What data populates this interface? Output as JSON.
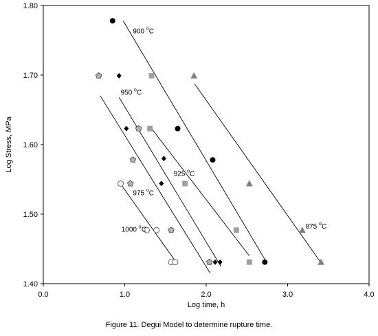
{
  "chart_data": {
    "type": "scatter",
    "caption": "Figure 11. Degui Model to determine rupture time.",
    "xlabel": "Log time, h",
    "ylabel": "Log Stress, MPa",
    "xlim": [
      0.0,
      4.0
    ],
    "ylim": [
      1.4,
      1.8
    ],
    "x_ticks": [
      "0.0",
      "1.0",
      "2.0",
      "3.0",
      "4.0"
    ],
    "y_ticks": [
      "1.40",
      "1.50",
      "1.60",
      "1.70",
      "1.80"
    ],
    "grid": false,
    "series": [
      {
        "marker": "circle-filled",
        "color": "#000000",
        "points": [
          [
            0.85,
            1.778
          ],
          [
            1.65,
            1.623
          ],
          [
            2.08,
            1.578
          ],
          [
            2.72,
            1.431
          ]
        ]
      },
      {
        "marker": "square",
        "color": "#a0a0a0",
        "points": [
          [
            1.33,
            1.699
          ],
          [
            1.31,
            1.623
          ],
          [
            1.74,
            1.544
          ],
          [
            2.37,
            1.477
          ],
          [
            2.53,
            1.431
          ]
        ]
      },
      {
        "marker": "triangle",
        "color": "#808080",
        "points": [
          [
            1.85,
            1.699
          ],
          [
            2.53,
            1.544
          ],
          [
            3.18,
            1.477
          ],
          [
            3.41,
            1.431
          ]
        ]
      },
      {
        "marker": "diamond",
        "color": "#000000",
        "points": [
          [
            0.93,
            1.699
          ],
          [
            1.02,
            1.623
          ],
          [
            1.48,
            1.58
          ],
          [
            1.45,
            1.544
          ],
          [
            2.11,
            1.431
          ],
          [
            2.17,
            1.431
          ]
        ]
      },
      {
        "marker": "pentagon",
        "color": "#b0b0b0",
        "points": [
          [
            0.68,
            1.699
          ],
          [
            1.17,
            1.623
          ],
          [
            1.1,
            1.578
          ],
          [
            1.07,
            1.544
          ],
          [
            1.57,
            1.477
          ],
          [
            2.04,
            1.431
          ]
        ]
      },
      {
        "marker": "circle-open",
        "color": "#ffffff",
        "points": [
          [
            0.95,
            1.544
          ],
          [
            1.27,
            1.477
          ],
          [
            1.39,
            1.477
          ],
          [
            1.57,
            1.431
          ],
          [
            1.62,
            1.431
          ]
        ]
      }
    ],
    "fit_lines": [
      {
        "label": "900",
        "from": [
          0.98,
          1.778
        ],
        "to": [
          2.74,
          1.431
        ]
      },
      {
        "label": "925",
        "from": [
          1.33,
          1.623
        ],
        "to": [
          2.53,
          1.44
        ]
      },
      {
        "label": "875",
        "from": [
          1.86,
          1.687
        ],
        "to": [
          3.41,
          1.43
        ]
      },
      {
        "label": "950",
        "from": [
          0.93,
          1.668
        ],
        "to": [
          2.18,
          1.425
        ]
      },
      {
        "label": "",
        "from": [
          0.7,
          1.67
        ],
        "to": [
          2.05,
          1.415
        ]
      },
      {
        "label": "1000",
        "from": [
          0.97,
          1.54
        ],
        "to": [
          1.63,
          1.431
        ]
      }
    ],
    "annotations": [
      {
        "text": "900 ",
        "unit": "o",
        "suffix": "C",
        "at": [
          1.1,
          1.76
        ]
      },
      {
        "text": "950 ",
        "unit": "o",
        "suffix": "C",
        "at": [
          0.95,
          1.672
        ]
      },
      {
        "text": "925 ",
        "unit": "o",
        "suffix": "C",
        "at": [
          1.6,
          1.555
        ]
      },
      {
        "text": "975 ",
        "unit": "o",
        "suffix": "C",
        "at": [
          1.1,
          1.527
        ]
      },
      {
        "text": "1000 ",
        "unit": "o",
        "suffix": "C",
        "at": [
          0.96,
          1.475
        ]
      },
      {
        "text": "875 ",
        "unit": "o",
        "suffix": "C",
        "at": [
          3.22,
          1.479
        ]
      }
    ]
  }
}
